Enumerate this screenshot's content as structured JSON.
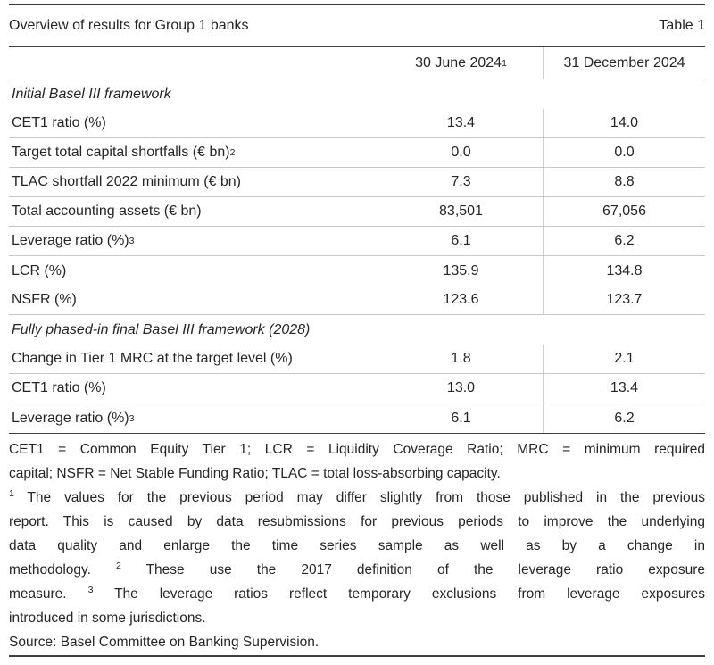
{
  "table": {
    "title": "Overview of results for Group 1 banks",
    "table_number": "Table 1",
    "columns": [
      {
        "label": "30 June 2024",
        "sup": "1"
      },
      {
        "label": "31 December 2024"
      }
    ],
    "sections": [
      {
        "header": "Initial Basel III framework",
        "rows": [
          {
            "label": "CET1 ratio (%)",
            "jun": "13.4",
            "dec": "14.0"
          },
          {
            "label": "Target total capital shortfalls (€ bn)",
            "sup": "2",
            "jun": "0.0",
            "dec": "0.0"
          },
          {
            "label": "TLAC shortfall 2022 minimum (€ bn)",
            "jun": "7.3",
            "dec": "8.8"
          },
          {
            "label": "Total accounting assets (€ bn)",
            "jun": "83,501",
            "dec": "67,056"
          },
          {
            "label": "Leverage ratio (%)",
            "sup": "3",
            "jun": "6.1",
            "dec": "6.2"
          },
          {
            "label": "LCR (%)",
            "jun": "135.9",
            "dec": "134.8"
          },
          {
            "label": "NSFR (%)",
            "jun": "123.6",
            "dec": "123.7"
          }
        ]
      },
      {
        "header": "Fully phased-in final Basel III framework (2028)",
        "rows": [
          {
            "label": "Change in Tier 1 MRC at the target level (%)",
            "jun": "1.8",
            "dec": "2.1"
          },
          {
            "label": "CET1 ratio (%)",
            "jun": "13.0",
            "dec": "13.4"
          },
          {
            "label": "Leverage ratio (%)",
            "sup": "3",
            "jun": "6.1",
            "dec": "6.2"
          }
        ]
      }
    ]
  },
  "footnotes": {
    "abbr_line1": "CET1 = Common Equity Tier 1; LCR = Liquidity Coverage Ratio; MRC = minimum required",
    "abbr_line2": "capital; NSFR = Net Stable Funding Ratio; TLAC = total loss-absorbing capacity.",
    "sup1": "1",
    "sup2": "2",
    "sup3": "3",
    "fn1_line1": "The values for the previous period may differ slightly from those published in the previous",
    "fn1_line2": "report. This is caused by data resubmissions for previous periods to improve the underlying",
    "fn1_line3": "data quality and enlarge the time series sample as well as by a change in",
    "fn1_line4a": "methodology.",
    "fn2_text": "These use the 2017 definition of the leverage ratio exposure",
    "fn2_cont": "measure.",
    "fn3_text": "The leverage ratios reflect temporary exclusions from leverage exposures",
    "fn3_cont": "introduced in some jurisdictions.",
    "source": "Source: Basel Committee on Banking Supervision."
  }
}
